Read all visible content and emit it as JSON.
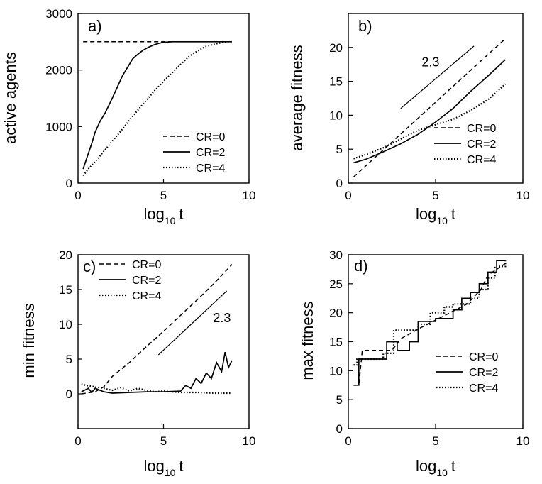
{
  "chart_data": [
    {
      "type": "line",
      "panel_label": "a)",
      "xlabel": "log",
      "xlabel_sub": "10",
      "xlabel_var": "t",
      "ylabel": "active agents",
      "xlim": [
        0,
        10
      ],
      "ylim": [
        0,
        3000
      ],
      "xticks": [
        "0",
        "5",
        "10"
      ],
      "yticks": [
        "0",
        "1000",
        "2000",
        "3000"
      ],
      "series": [
        {
          "name": "CR=0",
          "style": "dashed",
          "x": [
            0.3,
            9.0
          ],
          "y": [
            2500,
            2500
          ]
        },
        {
          "name": "CR=2",
          "style": "solid",
          "x": [
            0.3,
            0.5,
            0.8,
            1.0,
            1.3,
            1.6,
            2.0,
            2.3,
            2.6,
            2.9,
            3.2,
            3.5,
            3.8,
            4.1,
            4.4,
            4.7,
            5.0,
            5.5,
            6.0,
            7.0,
            8.0,
            9.0
          ],
          "y": [
            250,
            430,
            700,
            900,
            1100,
            1250,
            1500,
            1700,
            1900,
            2050,
            2200,
            2280,
            2350,
            2400,
            2440,
            2470,
            2490,
            2500,
            2500,
            2500,
            2500,
            2500
          ]
        },
        {
          "name": "CR=4",
          "style": "dotted",
          "x": [
            0.3,
            0.6,
            1.0,
            1.5,
            2.0,
            2.5,
            3.0,
            3.5,
            4.0,
            4.5,
            5.0,
            5.5,
            6.0,
            6.5,
            7.0,
            7.5,
            8.0,
            8.5,
            9.0
          ],
          "y": [
            130,
            250,
            380,
            560,
            740,
            920,
            1110,
            1290,
            1470,
            1640,
            1800,
            1950,
            2100,
            2240,
            2340,
            2420,
            2460,
            2490,
            2500
          ]
        }
      ],
      "legend": "lower-right",
      "annotation": null
    },
    {
      "type": "line",
      "panel_label": "b)",
      "xlabel": "log",
      "xlabel_sub": "10",
      "xlabel_var": "t",
      "ylabel": "average fitness",
      "xlim": [
        0,
        10
      ],
      "ylim": [
        0,
        25
      ],
      "xticks": [
        "0",
        "5",
        "10"
      ],
      "yticks": [
        "0",
        "5",
        "10",
        "15",
        "20"
      ],
      "series": [
        {
          "name": "CR=0",
          "style": "dashed",
          "x": [
            0.3,
            9.0
          ],
          "y": [
            0.9,
            21.3
          ]
        },
        {
          "name": "CR=2",
          "style": "solid",
          "x": [
            0.3,
            1.0,
            2.0,
            3.0,
            4.0,
            5.0,
            6.0,
            7.0,
            8.0,
            9.0
          ],
          "y": [
            3.0,
            3.5,
            4.6,
            5.8,
            7.2,
            9.0,
            11.0,
            13.5,
            15.8,
            18.2
          ]
        },
        {
          "name": "CR=4",
          "style": "dotted",
          "x": [
            0.3,
            1.0,
            2.0,
            3.0,
            4.0,
            5.0,
            6.0,
            7.0,
            8.0,
            9.0
          ],
          "y": [
            3.6,
            4.2,
            5.2,
            6.5,
            7.8,
            8.6,
            9.4,
            10.7,
            12.3,
            14.6
          ]
        }
      ],
      "legend": "lower-right",
      "annotation": {
        "text": "2.3",
        "line": [
          [
            3.0,
            11.0
          ],
          [
            7.2,
            20.2
          ]
        ],
        "text_at": [
          4.2,
          17.2
        ]
      }
    },
    {
      "type": "line",
      "panel_label": "c)",
      "xlabel": "log",
      "xlabel_sub": "10",
      "xlabel_var": "t",
      "ylabel": "min fitness",
      "xlim": [
        0,
        10
      ],
      "ylim": [
        -5,
        20
      ],
      "xticks": [
        "0",
        "5",
        "10"
      ],
      "yticks": [
        "0",
        "5",
        "10",
        "15",
        "20"
      ],
      "series": [
        {
          "name": "CR=0",
          "style": "dashed",
          "x": [
            0.2,
            1.0,
            1.5,
            2.0,
            3.0,
            4.0,
            5.0,
            6.0,
            7.0,
            8.0,
            9.0
          ],
          "y": [
            0.0,
            0.3,
            1.0,
            2.5,
            4.5,
            6.8,
            9.0,
            11.3,
            13.6,
            16.0,
            18.6
          ]
        },
        {
          "name": "CR=2",
          "style": "solid",
          "x": [
            0.2,
            0.6,
            0.8,
            1.0,
            1.5,
            2.0,
            3.0,
            4.0,
            5.0,
            6.0,
            6.3,
            6.6,
            6.9,
            7.2,
            7.5,
            7.8,
            8.1,
            8.4,
            8.6,
            8.8,
            9.0
          ],
          "y": [
            0.3,
            0.8,
            0.2,
            0.8,
            0.3,
            0.1,
            0.2,
            0.3,
            0.3,
            0.4,
            1.2,
            0.8,
            2.2,
            1.5,
            3.0,
            2.2,
            4.5,
            3.2,
            6.0,
            3.8,
            4.8
          ]
        },
        {
          "name": "CR=4",
          "style": "dotted",
          "x": [
            0.2,
            0.5,
            1.0,
            1.5,
            2.0,
            2.5,
            3.0,
            3.5,
            4.0,
            4.5,
            5.0,
            6.0,
            7.0,
            8.0,
            9.0
          ],
          "y": [
            1.4,
            1.2,
            1.0,
            0.8,
            0.5,
            0.9,
            0.4,
            0.8,
            0.5,
            0.3,
            0.4,
            0.2,
            0.2,
            0.1,
            0.1
          ]
        }
      ],
      "legend": "top-left",
      "annotation": {
        "text": "2.3",
        "line": [
          [
            4.7,
            5.6
          ],
          [
            8.7,
            14.8
          ]
        ],
        "text_at": [
          7.9,
          10.3
        ]
      }
    },
    {
      "type": "line",
      "panel_label": "d)",
      "xlabel": "log",
      "xlabel_sub": "10",
      "xlabel_var": "t",
      "ylabel": "max fitness",
      "xlim": [
        0,
        10
      ],
      "ylim": [
        0,
        30
      ],
      "xticks": [
        "0",
        "5",
        "10"
      ],
      "yticks": [
        "0",
        "5",
        "10",
        "15",
        "20",
        "25",
        "30"
      ],
      "series": [
        {
          "name": "CR=0",
          "style": "dashed",
          "x": [
            0.3,
            0.6,
            0.8,
            2.5,
            3.0,
            4.2,
            5.5,
            6.8,
            7.6,
            8.0,
            9.0
          ],
          "y": [
            7.5,
            7.5,
            13.5,
            13.5,
            15.5,
            17.5,
            19.5,
            21.5,
            24.0,
            26.5,
            28.5
          ]
        },
        {
          "name": "CR=2",
          "style": "solid",
          "stepped": true,
          "x": [
            0.3,
            0.6,
            2.2,
            2.8,
            3.5,
            4.0,
            5.0,
            6.0,
            6.5,
            7.0,
            7.5,
            8.0,
            8.5,
            9.0
          ],
          "y": [
            7.5,
            12.0,
            15.0,
            13.5,
            15.0,
            18.5,
            19.0,
            20.5,
            22.5,
            23.5,
            25.0,
            27.0,
            29.0,
            29.0
          ]
        },
        {
          "name": "CR=4",
          "style": "dotted",
          "stepped": true,
          "x": [
            0.3,
            0.5,
            2.0,
            2.6,
            3.2,
            4.0,
            4.7,
            5.5,
            6.0,
            6.5,
            7.0,
            7.5,
            8.0,
            8.4,
            9.0
          ],
          "y": [
            11.0,
            12.0,
            13.0,
            17.0,
            17.0,
            18.0,
            20.0,
            21.0,
            21.5,
            21.5,
            22.5,
            24.0,
            26.0,
            28.0,
            29.0
          ]
        }
      ],
      "legend": "lower-right",
      "annotation": null
    }
  ]
}
